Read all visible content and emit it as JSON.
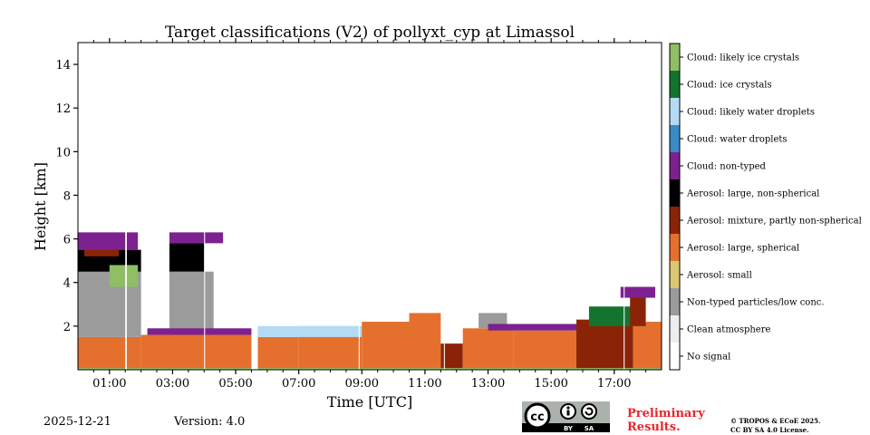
{
  "chart_data": {
    "type": "heatmap",
    "title": "Target classifications (V2) of pollyxt_cyp at Limassol",
    "xlabel": "Time [UTC]",
    "ylabel": "Height [km]",
    "xlim": [
      0.0,
      18.5
    ],
    "ylim": [
      0,
      15
    ],
    "x_ticks": [
      {
        "value": 1,
        "label": "01:00"
      },
      {
        "value": 3,
        "label": "03:00"
      },
      {
        "value": 5,
        "label": "05:00"
      },
      {
        "value": 7,
        "label": "07:00"
      },
      {
        "value": 9,
        "label": "09:00"
      },
      {
        "value": 11,
        "label": "11:00"
      },
      {
        "value": 13,
        "label": "13:00"
      },
      {
        "value": 15,
        "label": "15:00"
      },
      {
        "value": 17,
        "label": "17:00"
      }
    ],
    "y_ticks": [
      {
        "value": 2,
        "label": "2"
      },
      {
        "value": 4,
        "label": "4"
      },
      {
        "value": 6,
        "label": "6"
      },
      {
        "value": 8,
        "label": "8"
      },
      {
        "value": 10,
        "label": "10"
      },
      {
        "value": 12,
        "label": "12"
      },
      {
        "value": 14,
        "label": "14"
      }
    ],
    "classes": [
      {
        "id": 0,
        "label": "No signal",
        "color": "#ffffff"
      },
      {
        "id": 1,
        "label": "Clean atmosphere",
        "color": "#ededed"
      },
      {
        "id": 2,
        "label": "Non-typed particles/low conc.",
        "color": "#9b9b9b"
      },
      {
        "id": 3,
        "label": "Aerosol: small",
        "color": "#dbc674"
      },
      {
        "id": 4,
        "label": "Aerosol: large, spherical",
        "color": "#e5702e"
      },
      {
        "id": 5,
        "label": "Aerosol: mixture, partly non-spherical",
        "color": "#8b2407"
      },
      {
        "id": 6,
        "label": "Aerosol: large, non-spherical",
        "color": "#000000"
      },
      {
        "id": 7,
        "label": "Cloud: non-typed",
        "color": "#7d2190"
      },
      {
        "id": 8,
        "label": "Cloud: water droplets",
        "color": "#3b8ac8"
      },
      {
        "id": 9,
        "label": "Cloud: likely water droplets",
        "color": "#b3dbf4"
      },
      {
        "id": 10,
        "label": "Cloud: ice crystals",
        "color": "#14742e"
      },
      {
        "id": 11,
        "label": "Cloud: likely ice crystals",
        "color": "#8fbe64"
      }
    ],
    "regions": [
      {
        "class": 4,
        "t0": 0.0,
        "t1": 2.0,
        "h0": 0.0,
        "h1": 1.5
      },
      {
        "class": 2,
        "t0": 0.0,
        "t1": 2.0,
        "h0": 1.5,
        "h1": 4.8
      },
      {
        "class": 6,
        "t0": 0.0,
        "t1": 2.0,
        "h0": 4.5,
        "h1": 5.5
      },
      {
        "class": 5,
        "t0": 0.2,
        "t1": 1.3,
        "h0": 5.2,
        "h1": 5.6
      },
      {
        "class": 11,
        "t0": 1.0,
        "t1": 1.9,
        "h0": 3.8,
        "h1": 4.8
      },
      {
        "class": 7,
        "t0": 0.0,
        "t1": 1.9,
        "h0": 5.5,
        "h1": 6.3
      },
      {
        "class": 4,
        "t0": 2.0,
        "t1": 5.5,
        "h0": 0.0,
        "h1": 1.6
      },
      {
        "class": 2,
        "t0": 2.9,
        "t1": 4.3,
        "h0": 1.6,
        "h1": 4.5
      },
      {
        "class": 6,
        "t0": 2.9,
        "t1": 4.0,
        "h0": 4.5,
        "h1": 5.8
      },
      {
        "class": 7,
        "t0": 2.9,
        "t1": 4.6,
        "h0": 5.8,
        "h1": 6.3
      },
      {
        "class": 7,
        "t0": 2.2,
        "t1": 5.5,
        "h0": 1.6,
        "h1": 1.9
      },
      {
        "class": 4,
        "t0": 5.7,
        "t1": 7.0,
        "h0": 0.0,
        "h1": 1.5
      },
      {
        "class": 4,
        "t0": 7.0,
        "t1": 9.0,
        "h0": 0.0,
        "h1": 2.0
      },
      {
        "class": 9,
        "t0": 5.7,
        "t1": 9.0,
        "h0": 1.5,
        "h1": 2.0
      },
      {
        "class": 4,
        "t0": 9.0,
        "t1": 10.5,
        "h0": 0.0,
        "h1": 2.2
      },
      {
        "class": 4,
        "t0": 10.5,
        "t1": 11.5,
        "h0": 0.0,
        "h1": 2.6
      },
      {
        "class": 5,
        "t0": 11.5,
        "t1": 12.2,
        "h0": 0.0,
        "h1": 1.2
      },
      {
        "class": 4,
        "t0": 12.2,
        "t1": 13.8,
        "h0": 0.0,
        "h1": 1.9
      },
      {
        "class": 2,
        "t0": 12.7,
        "t1": 13.6,
        "h0": 1.9,
        "h1": 2.6
      },
      {
        "class": 4,
        "t0": 13.8,
        "t1": 15.8,
        "h0": 0.0,
        "h1": 1.8
      },
      {
        "class": 7,
        "t0": 13.0,
        "t1": 15.8,
        "h0": 1.8,
        "h1": 2.1
      },
      {
        "class": 5,
        "t0": 15.8,
        "t1": 17.6,
        "h0": 0.0,
        "h1": 2.3
      },
      {
        "class": 10,
        "t0": 16.2,
        "t1": 17.6,
        "h0": 2.0,
        "h1": 2.9
      },
      {
        "class": 4,
        "t0": 17.6,
        "t1": 18.5,
        "h0": 0.0,
        "h1": 2.2
      },
      {
        "class": 5,
        "t0": 17.5,
        "t1": 18.0,
        "h0": 2.0,
        "h1": 3.4
      },
      {
        "class": 7,
        "t0": 17.2,
        "t1": 18.3,
        "h0": 3.3,
        "h1": 3.8
      },
      {
        "class": 11,
        "t0": 0.0,
        "t1": 18.5,
        "h0": 0.0,
        "h1": 0.08
      }
    ],
    "gaps": [
      {
        "t0": 5.5,
        "t1": 5.7
      },
      {
        "t0": 1.5,
        "t1": 1.55
      },
      {
        "t0": 4.0,
        "t1": 4.03
      },
      {
        "t0": 8.9,
        "t1": 8.93
      },
      {
        "t0": 11.6,
        "t1": 11.63
      },
      {
        "t0": 17.3,
        "t1": 17.33
      }
    ]
  },
  "footer": {
    "date": "2025-12-21",
    "version": "Version: 4.0",
    "license_badge": [
      "BY",
      "SA"
    ],
    "preliminary": [
      "Preliminary",
      "Results."
    ],
    "copyright": [
      "© TROPOS & ECoE 2025.",
      "CC BY SA 4.0 License."
    ]
  }
}
